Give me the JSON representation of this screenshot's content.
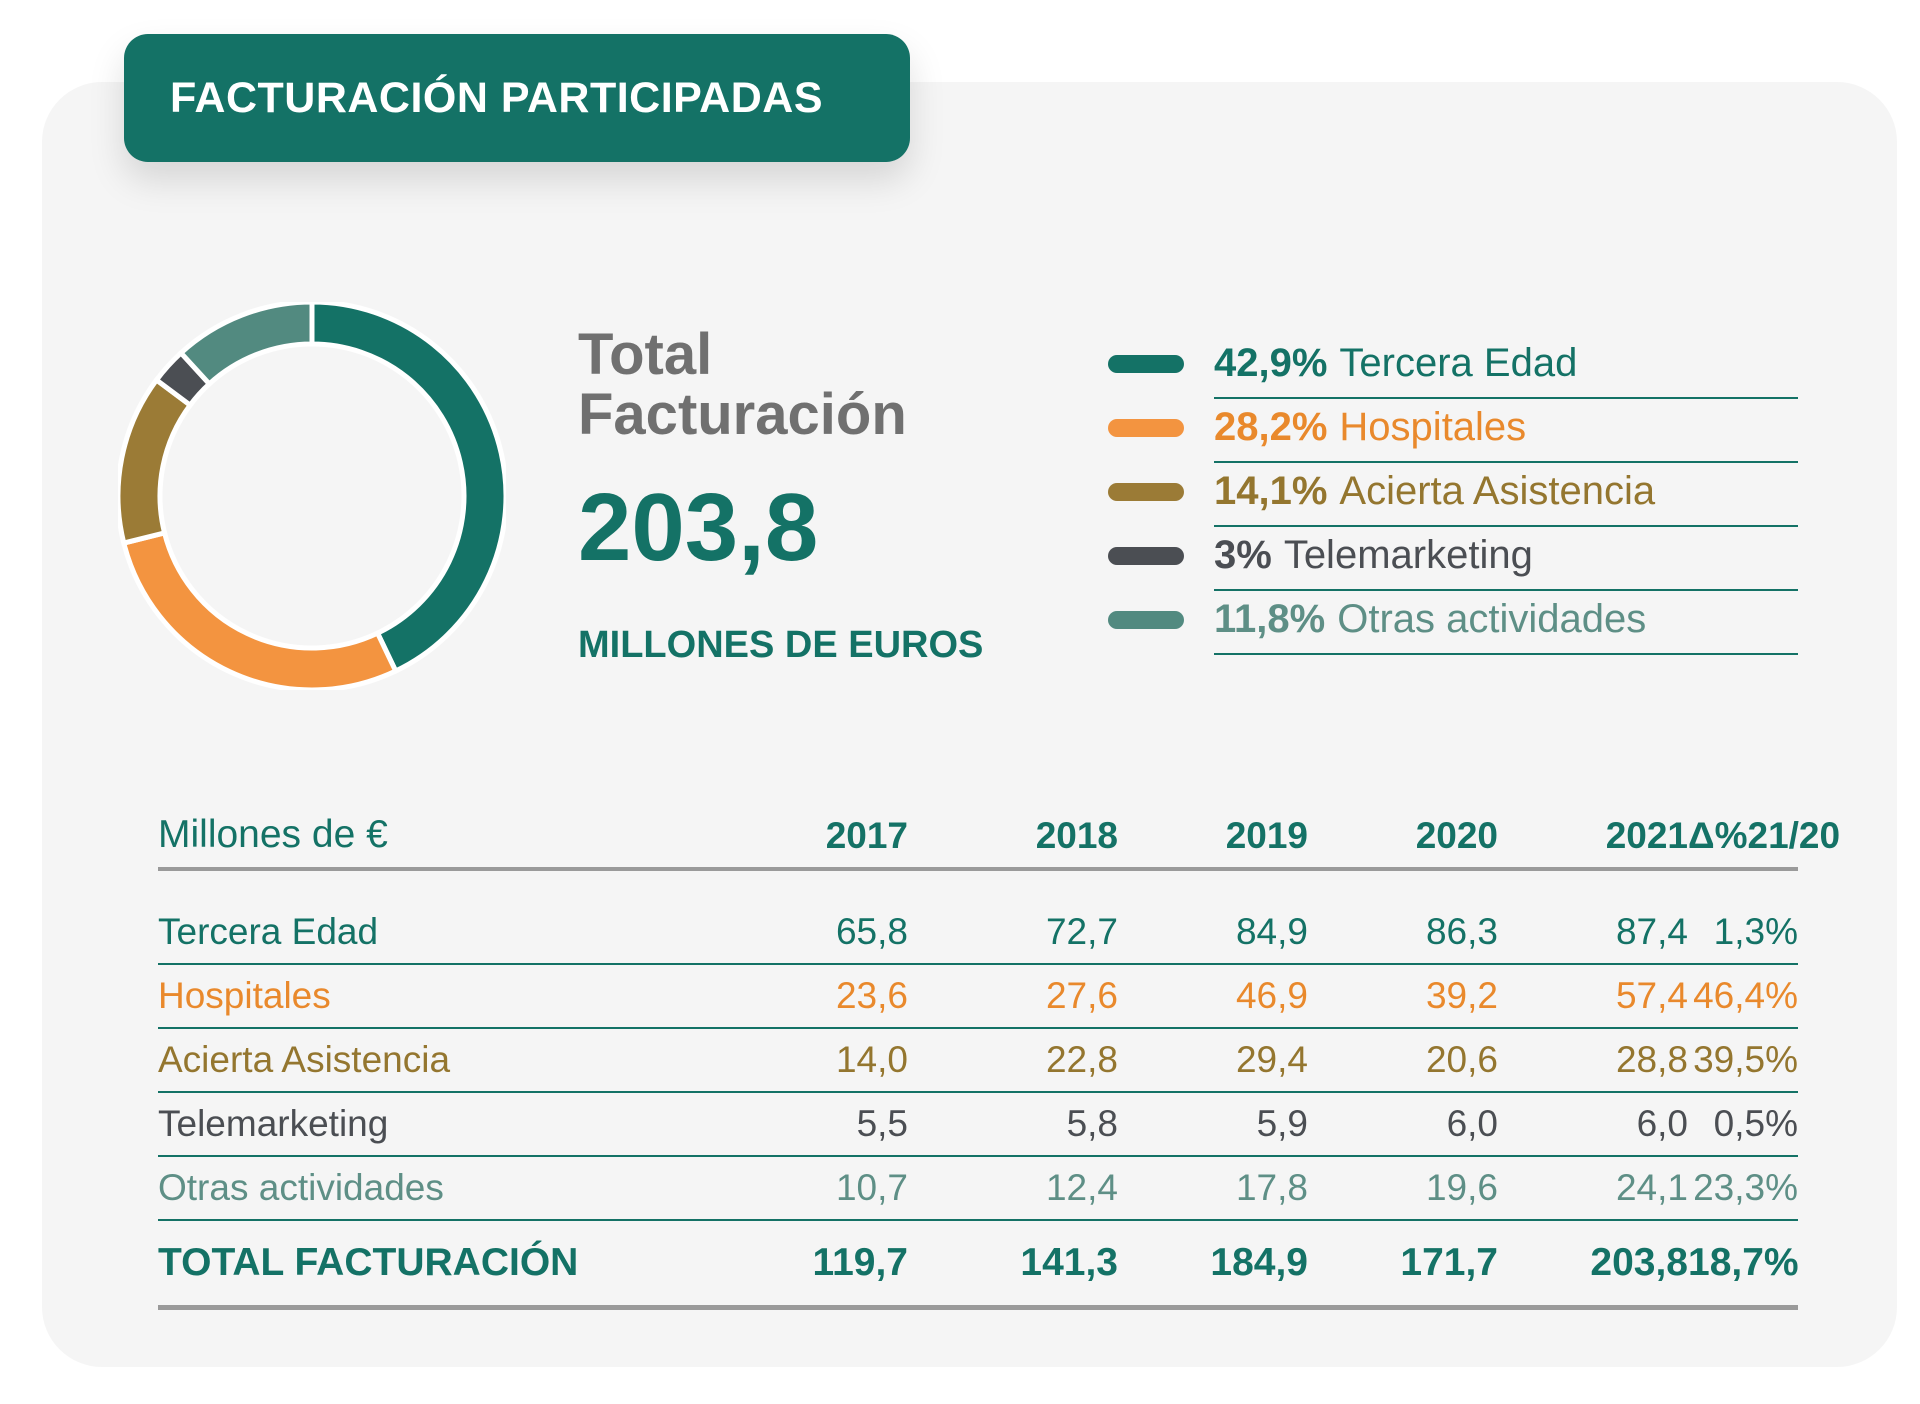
{
  "header": {
    "title": "FACTURACIÓN PARTICIPADAS"
  },
  "summary": {
    "label_line1": "Total",
    "label_line2": "Facturación",
    "value": "203,8",
    "unit": "MILLONES DE EUROS"
  },
  "legend": [
    {
      "pct": "42,9%",
      "label": "Tercera Edad",
      "color": "#147266"
    },
    {
      "pct": "28,2%",
      "label": "Hospitales",
      "color": "#f39440"
    },
    {
      "pct": "14,1%",
      "label": "Acierta Asistencia",
      "color": "#9b7b36"
    },
    {
      "pct": "3%",
      "label": "Telemarketing",
      "color": "#4b4e53"
    },
    {
      "pct": "11,8%",
      "label": "Otras actividades",
      "color": "#528a80"
    }
  ],
  "label_colors": [
    "#147266",
    "#e9892c",
    "#94762f",
    "#4b4e53",
    "#5e8f86"
  ],
  "chart_data": [
    {
      "type": "pie",
      "title": "Total Facturación",
      "categories": [
        "Tercera Edad",
        "Hospitales",
        "Acierta Asistencia",
        "Telemarketing",
        "Otras actividades"
      ],
      "values": [
        42.9,
        28.2,
        14.1,
        3,
        11.8
      ],
      "colors": [
        "#147266",
        "#f39440",
        "#9b7b36",
        "#4b4e53",
        "#528a80"
      ]
    },
    {
      "type": "table",
      "columns": [
        "Millones de €",
        "2017",
        "2018",
        "2019",
        "2020",
        "2021",
        "Δ%21/20"
      ],
      "rows": [
        [
          "Tercera Edad",
          "65,8",
          "72,7",
          "84,9",
          "86,3",
          "87,4",
          "1,3%"
        ],
        [
          "Hospitales",
          "23,6",
          "27,6",
          "46,9",
          "39,2",
          "57,4",
          "46,4%"
        ],
        [
          "Acierta Asistencia",
          "14,0",
          "22,8",
          "29,4",
          "20,6",
          "28,8",
          "39,5%"
        ],
        [
          "Telemarketing",
          "5,5",
          "5,8",
          "5,9",
          "6,0",
          "6,0",
          "0,5%"
        ],
        [
          "Otras actividades",
          "10,7",
          "12,4",
          "17,8",
          "19,6",
          "24,1",
          "23,3%"
        ]
      ],
      "total": [
        "TOTAL FACTURACIÓN",
        "119,7",
        "141,3",
        "184,9",
        "171,7",
        "203,8",
        "18,7%"
      ]
    }
  ]
}
